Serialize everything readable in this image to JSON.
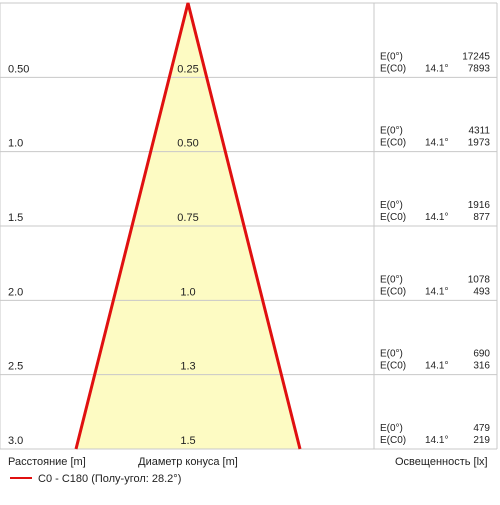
{
  "rows": [
    {
      "distance": "0.50",
      "diameter": "0.25",
      "e0_label": "E(0°)",
      "ec0_label": "E(C0)",
      "angle": "14.1°",
      "e0": "17245",
      "ec0": "7893"
    },
    {
      "distance": "1.0",
      "diameter": "0.50",
      "e0_label": "E(0°)",
      "ec0_label": "E(C0)",
      "angle": "14.1°",
      "e0": "4311",
      "ec0": "1973"
    },
    {
      "distance": "1.5",
      "diameter": "0.75",
      "e0_label": "E(0°)",
      "ec0_label": "E(C0)",
      "angle": "14.1°",
      "e0": "1916",
      "ec0": "877"
    },
    {
      "distance": "2.0",
      "diameter": "1.0",
      "e0_label": "E(0°)",
      "ec0_label": "E(C0)",
      "angle": "14.1°",
      "e0": "1078",
      "ec0": "493"
    },
    {
      "distance": "2.5",
      "diameter": "1.3",
      "e0_label": "E(0°)",
      "ec0_label": "E(C0)",
      "angle": "14.1°",
      "e0": "690",
      "ec0": "316"
    },
    {
      "distance": "3.0",
      "diameter": "1.5",
      "e0_label": "E(0°)",
      "ec0_label": "E(C0)",
      "angle": "14.1°",
      "e0": "479",
      "ec0": "219"
    }
  ],
  "footer": {
    "distance": "Расстояние [m]",
    "diameter": "Диаметр конуса [m]",
    "illuminance": "Освещенность [lx]"
  },
  "legend": "C0 - C180 (Полу-угол: 28.2°)"
}
